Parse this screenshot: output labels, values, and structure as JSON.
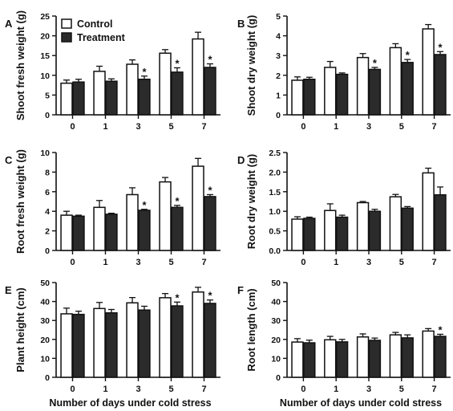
{
  "legend": {
    "control": "Control",
    "treatment": "Treatment"
  },
  "chart_data": [
    {
      "type": "bar",
      "panel": "A",
      "ylabel": "Shoot fresh weight (g)",
      "xlabel": "",
      "categories": [
        "0",
        "1",
        "3",
        "5",
        "7"
      ],
      "ylim": [
        0,
        25
      ],
      "yticks": [
        0,
        5,
        10,
        15,
        20,
        25
      ],
      "series": [
        {
          "name": "Control",
          "values": [
            8.0,
            11.0,
            12.8,
            15.6,
            19.2
          ],
          "errors": [
            0.8,
            1.3,
            1.1,
            0.9,
            1.7
          ]
        },
        {
          "name": "Treatment",
          "values": [
            8.3,
            8.5,
            9.0,
            10.8,
            12.0
          ],
          "errors": [
            0.7,
            0.6,
            0.8,
            1.1,
            0.9
          ]
        }
      ],
      "significant": [
        false,
        false,
        true,
        true,
        true
      ]
    },
    {
      "type": "bar",
      "panel": "B",
      "ylabel": "Shoot dry weight (g)",
      "xlabel": "",
      "categories": [
        "0",
        "1",
        "3",
        "5",
        "7"
      ],
      "ylim": [
        0,
        5
      ],
      "yticks": [
        0,
        1,
        2,
        3,
        4,
        5
      ],
      "series": [
        {
          "name": "Control",
          "values": [
            1.75,
            2.4,
            2.9,
            3.4,
            4.35
          ],
          "errors": [
            0.17,
            0.3,
            0.2,
            0.2,
            0.22
          ]
        },
        {
          "name": "Treatment",
          "values": [
            1.8,
            2.05,
            2.3,
            2.65,
            3.05
          ],
          "errors": [
            0.1,
            0.07,
            0.1,
            0.15,
            0.15
          ]
        }
      ],
      "significant": [
        false,
        false,
        true,
        true,
        true
      ]
    },
    {
      "type": "bar",
      "panel": "C",
      "ylabel": "Root fresh weight (g)",
      "xlabel": "",
      "categories": [
        "0",
        "1",
        "3",
        "5",
        "7"
      ],
      "ylim": [
        0,
        10
      ],
      "yticks": [
        0,
        2,
        4,
        6,
        8,
        10
      ],
      "series": [
        {
          "name": "Control",
          "values": [
            3.6,
            4.4,
            5.7,
            7.0,
            8.6
          ],
          "errors": [
            0.4,
            0.7,
            0.7,
            0.45,
            0.8
          ]
        },
        {
          "name": "Treatment",
          "values": [
            3.5,
            3.7,
            4.1,
            4.4,
            5.5
          ],
          "errors": [
            0.1,
            0.1,
            0.1,
            0.2,
            0.2
          ]
        }
      ],
      "significant": [
        false,
        false,
        true,
        true,
        true
      ]
    },
    {
      "type": "bar",
      "panel": "D",
      "ylabel": "Root dry weight (g)",
      "xlabel": "",
      "categories": [
        "0",
        "1",
        "3",
        "5",
        "7"
      ],
      "ylim": [
        0,
        2.5
      ],
      "yticks": [
        "0.0",
        "0.5",
        "1.0",
        "1.5",
        "2.0",
        "2.5"
      ],
      "series": [
        {
          "name": "Control",
          "values": [
            0.8,
            1.02,
            1.22,
            1.37,
            1.98
          ],
          "errors": [
            0.06,
            0.17,
            0.03,
            0.06,
            0.12
          ]
        },
        {
          "name": "Treatment",
          "values": [
            0.82,
            0.85,
            1.0,
            1.08,
            1.42
          ],
          "errors": [
            0.03,
            0.05,
            0.05,
            0.04,
            0.2
          ]
        }
      ],
      "significant": [
        false,
        false,
        false,
        false,
        false
      ]
    },
    {
      "type": "bar",
      "panel": "E",
      "ylabel": "Plant height (cm)",
      "xlabel": "Number of days under cold stress",
      "categories": [
        "0",
        "1",
        "3",
        "5",
        "7"
      ],
      "ylim": [
        0,
        50
      ],
      "yticks": [
        0,
        10,
        20,
        30,
        40,
        50
      ],
      "series": [
        {
          "name": "Control",
          "values": [
            33.5,
            36.3,
            39.3,
            42.0,
            45.0
          ],
          "errors": [
            3.0,
            3.2,
            2.8,
            2.2,
            2.5
          ]
        },
        {
          "name": "Treatment",
          "values": [
            33.2,
            34.0,
            35.5,
            37.7,
            39.0
          ],
          "errors": [
            1.7,
            1.8,
            2.0,
            2.0,
            1.8
          ]
        }
      ],
      "significant": [
        false,
        false,
        false,
        true,
        true
      ]
    },
    {
      "type": "bar",
      "panel": "F",
      "ylabel": "Root length (cm)",
      "xlabel": "Number of days under cold stress",
      "categories": [
        "0",
        "1",
        "3",
        "5",
        "7"
      ],
      "ylim": [
        0,
        50
      ],
      "yticks": [
        0,
        10,
        20,
        30,
        40,
        50
      ],
      "series": [
        {
          "name": "Control",
          "values": [
            18.6,
            19.8,
            21.3,
            22.4,
            24.4
          ],
          "errors": [
            1.8,
            1.8,
            1.6,
            1.3,
            1.3
          ]
        },
        {
          "name": "Treatment",
          "values": [
            18.2,
            18.7,
            19.5,
            20.8,
            21.6
          ],
          "errors": [
            1.4,
            1.3,
            1.2,
            1.6,
            1.1
          ]
        }
      ],
      "significant": [
        false,
        false,
        false,
        false,
        true
      ]
    }
  ]
}
